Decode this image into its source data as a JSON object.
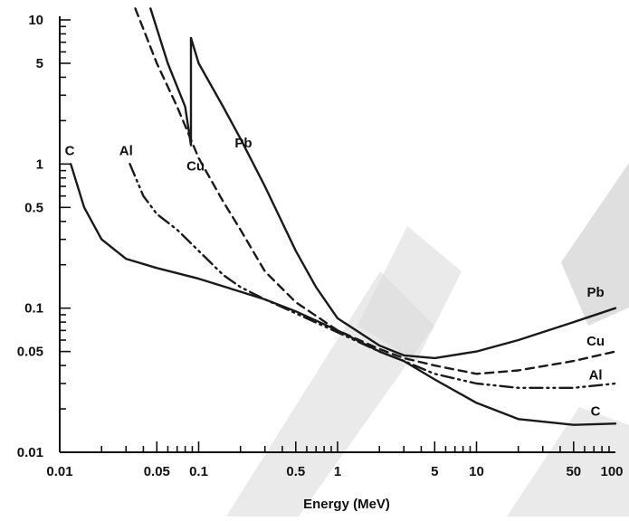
{
  "chart_data": {
    "type": "line",
    "title": "",
    "xlabel": "Energy (MeV)",
    "ylabel": "",
    "xscale": "log",
    "yscale": "log",
    "xlim": [
      0.01,
      100
    ],
    "ylim": [
      0.01,
      10
    ],
    "x_tick_labels": [
      {
        "value": 0.01,
        "label": "0.01"
      },
      {
        "value": 0.05,
        "label": "0.05"
      },
      {
        "value": 0.1,
        "label": "0.1"
      },
      {
        "value": 0.5,
        "label": "0.5"
      },
      {
        "value": 1,
        "label": "1"
      },
      {
        "value": 5,
        "label": "5"
      },
      {
        "value": 10,
        "label": "10"
      },
      {
        "value": 50,
        "label": "50"
      },
      {
        "value": 100,
        "label": "100"
      }
    ],
    "y_tick_labels": [
      {
        "value": 0.01,
        "label": "0.01"
      },
      {
        "value": 0.05,
        "label": "0.05"
      },
      {
        "value": 0.1,
        "label": "0.1"
      },
      {
        "value": 0.5,
        "label": "0.5"
      },
      {
        "value": 1,
        "label": "1"
      },
      {
        "value": 5,
        "label": "5"
      },
      {
        "value": 10,
        "label": "10"
      }
    ],
    "grid": false,
    "legend": "none",
    "series": [
      {
        "name": "C",
        "style": "solid",
        "label_at": [
          0.0118,
          1.15
        ],
        "points": [
          [
            0.012,
            1.0
          ],
          [
            0.015,
            0.5
          ],
          [
            0.02,
            0.3
          ],
          [
            0.03,
            0.22
          ],
          [
            0.05,
            0.19
          ],
          [
            0.1,
            0.16
          ],
          [
            0.2,
            0.13
          ],
          [
            0.3,
            0.115
          ],
          [
            0.5,
            0.095
          ],
          [
            1,
            0.07
          ],
          [
            2,
            0.05
          ],
          [
            3,
            0.043
          ],
          [
            5,
            0.032
          ],
          [
            10,
            0.022
          ],
          [
            20,
            0.017
          ],
          [
            50,
            0.0155
          ],
          [
            100,
            0.0158
          ]
        ]
      },
      {
        "name": "Al",
        "style": "dash-dot-dot",
        "label_at": [
          0.03,
          1.15
        ],
        "points": [
          [
            0.032,
            1.0
          ],
          [
            0.04,
            0.6
          ],
          [
            0.05,
            0.45
          ],
          [
            0.07,
            0.35
          ],
          [
            0.1,
            0.25
          ],
          [
            0.15,
            0.17
          ],
          [
            0.2,
            0.14
          ],
          [
            0.3,
            0.115
          ],
          [
            0.5,
            0.092
          ],
          [
            1,
            0.068
          ],
          [
            2,
            0.05
          ],
          [
            3,
            0.043
          ],
          [
            5,
            0.035
          ],
          [
            10,
            0.03
          ],
          [
            20,
            0.028
          ],
          [
            50,
            0.028
          ],
          [
            100,
            0.03
          ]
        ]
      },
      {
        "name": "Cu",
        "style": "dashed",
        "label_at": [
          0.095,
          0.9
        ],
        "points": [
          [
            0.035,
            12
          ],
          [
            0.05,
            5
          ],
          [
            0.07,
            2.5
          ],
          [
            0.1,
            1.1
          ],
          [
            0.15,
            0.55
          ],
          [
            0.2,
            0.35
          ],
          [
            0.3,
            0.18
          ],
          [
            0.5,
            0.11
          ],
          [
            1,
            0.07
          ],
          [
            2,
            0.052
          ],
          [
            3,
            0.045
          ],
          [
            5,
            0.04
          ],
          [
            10,
            0.035
          ],
          [
            20,
            0.037
          ],
          [
            50,
            0.043
          ],
          [
            100,
            0.05
          ]
        ]
      },
      {
        "name": "Pb",
        "style": "solid",
        "label_at": [
          0.21,
          1.3
        ],
        "points": [
          [
            0.045,
            12
          ],
          [
            0.06,
            5
          ],
          [
            0.08,
            2.5
          ],
          [
            0.088,
            1.35
          ],
          [
            0.088,
            7.5
          ],
          [
            0.1,
            5
          ],
          [
            0.15,
            2.5
          ],
          [
            0.2,
            1.5
          ],
          [
            0.3,
            0.7
          ],
          [
            0.5,
            0.25
          ],
          [
            0.7,
            0.14
          ],
          [
            1,
            0.085
          ],
          [
            2,
            0.055
          ],
          [
            3,
            0.047
          ],
          [
            5,
            0.045
          ],
          [
            10,
            0.05
          ],
          [
            20,
            0.06
          ],
          [
            50,
            0.08
          ],
          [
            100,
            0.1
          ]
        ]
      }
    ],
    "end_labels": [
      {
        "series": "Pb",
        "text": "Pb",
        "at": [
          72,
          0.12
        ]
      },
      {
        "series": "Cu",
        "text": "Cu",
        "at": [
          72,
          0.055
        ]
      },
      {
        "series": "Al",
        "text": "Al",
        "at": [
          72,
          0.032
        ]
      },
      {
        "series": "C",
        "text": "C",
        "at": [
          72,
          0.018
        ]
      }
    ]
  }
}
